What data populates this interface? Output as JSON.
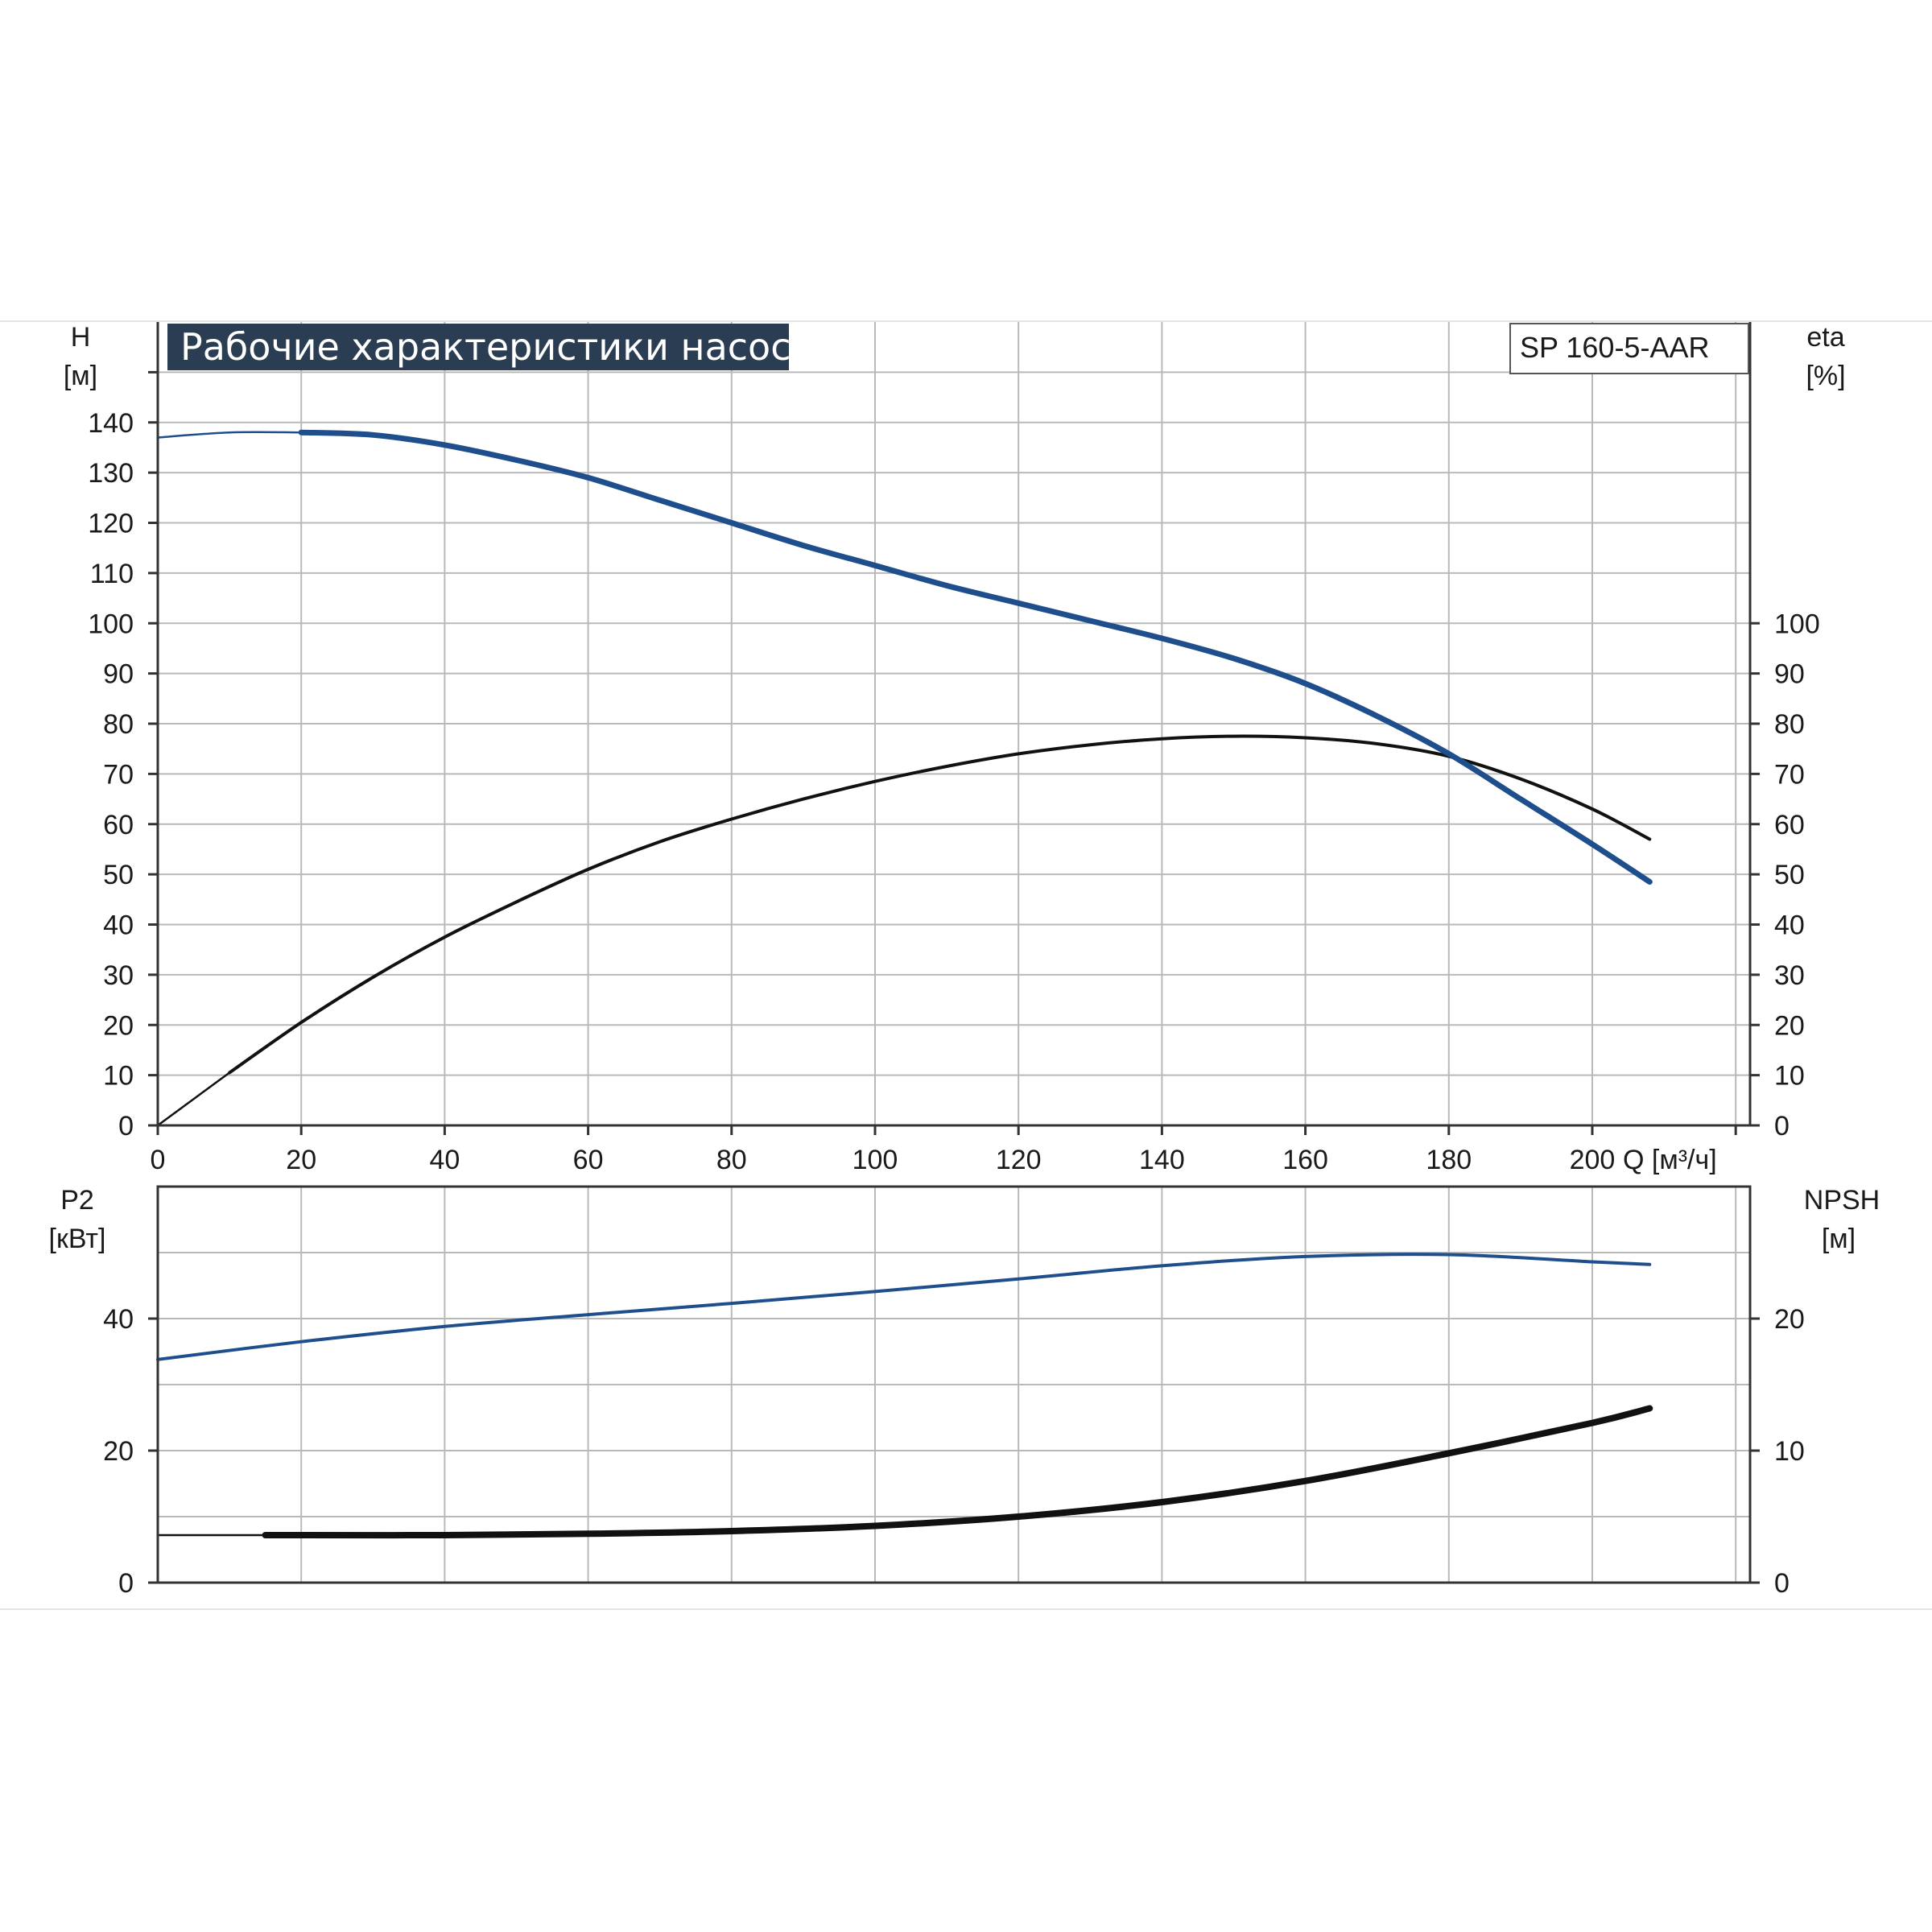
{
  "chart_data": [
    {
      "type": "line",
      "title": "Рабочие характеристики насоса",
      "model_label": "SP 160-5-AAR",
      "xlabel": "Q [м³/ч]",
      "ylabel_left": "H",
      "ylabel_left_unit": "[м]",
      "ylabel_right": "eta",
      "ylabel_right_unit": "[%]",
      "xlim": [
        0,
        222
      ],
      "ylim_left": [
        0,
        160
      ],
      "ylim_right": [
        0,
        160
      ],
      "x_ticks": [
        "0",
        "20",
        "40",
        "60",
        "80",
        "100",
        "120",
        "140",
        "160",
        "180",
        "200"
      ],
      "y_ticks_left": [
        "0",
        "10",
        "20",
        "30",
        "40",
        "50",
        "60",
        "70",
        "80",
        "90",
        "100",
        "110",
        "120",
        "130",
        "140"
      ],
      "y_ticks_right": [
        "0",
        "10",
        "20",
        "30",
        "40",
        "50",
        "60",
        "70",
        "80",
        "90",
        "100"
      ],
      "grid": true,
      "series": [
        {
          "name": "H",
          "axis": "left",
          "color": "#1f4e8c",
          "x": [
            0,
            10,
            20,
            30,
            40,
            50,
            60,
            70,
            80,
            90,
            100,
            110,
            120,
            130,
            140,
            150,
            160,
            170,
            180,
            190,
            200,
            208
          ],
          "y": [
            137,
            138,
            138,
            137.5,
            135.5,
            132.5,
            129,
            124.5,
            120,
            115.5,
            111.5,
            107.5,
            104,
            100.5,
            97,
            93,
            88,
            81.5,
            74,
            65,
            56,
            48.5
          ]
        },
        {
          "name": "eta",
          "axis": "right",
          "color": "#111111",
          "x": [
            0,
            10,
            20,
            30,
            40,
            50,
            60,
            70,
            80,
            90,
            100,
            110,
            120,
            130,
            140,
            150,
            160,
            170,
            180,
            190,
            200,
            208
          ],
          "y": [
            0,
            10.5,
            20.5,
            29.5,
            37.5,
            44.5,
            51,
            56.5,
            61,
            65,
            68.5,
            71.5,
            74,
            75.8,
            77,
            77.5,
            77.2,
            76,
            73.5,
            69,
            63,
            57
          ]
        }
      ]
    },
    {
      "type": "line",
      "ylabel_left": "P2",
      "ylabel_left_unit": "[кВт]",
      "ylabel_right": "NPSH",
      "ylabel_right_unit": "[м]",
      "xlim": [
        0,
        222
      ],
      "ylim_left": [
        0,
        60
      ],
      "ylim_right": [
        0,
        30
      ],
      "y_ticks_left": [
        "0",
        "20",
        "40"
      ],
      "y_ticks_right": [
        "0",
        "10",
        "20"
      ],
      "grid": true,
      "series": [
        {
          "name": "P2",
          "axis": "left",
          "color": "#1f4e8c",
          "x": [
            0,
            20,
            40,
            60,
            80,
            100,
            120,
            140,
            160,
            180,
            200,
            208
          ],
          "y": [
            33.8,
            36.5,
            38.8,
            40.6,
            42.3,
            44.1,
            46,
            48,
            49.4,
            49.7,
            48.6,
            48.2
          ]
        },
        {
          "name": "NPSH",
          "axis": "right",
          "color": "#111111",
          "x": [
            0,
            15,
            20,
            40,
            60,
            80,
            100,
            120,
            140,
            160,
            180,
            200,
            208
          ],
          "y": [
            3.6,
            3.6,
            3.6,
            3.6,
            3.7,
            3.9,
            4.3,
            5,
            6.1,
            7.7,
            9.8,
            12.1,
            13.2
          ]
        }
      ]
    }
  ]
}
